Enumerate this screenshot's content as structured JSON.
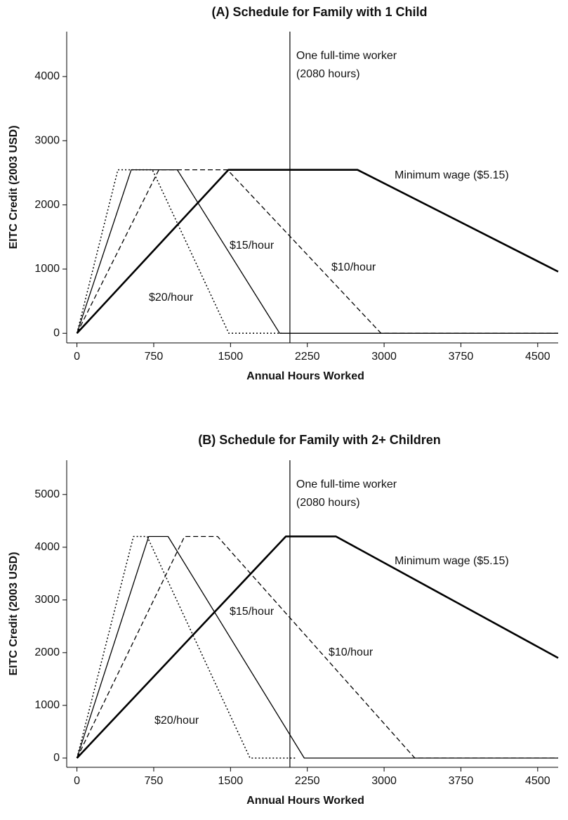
{
  "chart_data": [
    {
      "type": "line",
      "title": "(A) Schedule for Family with 1 Child",
      "xlabel": "Annual Hours Worked",
      "ylabel": "EITC Credit (2003 USD)",
      "xlim": [
        -100,
        4700
      ],
      "ylim": [
        -150,
        4700
      ],
      "xticks": [
        0,
        750,
        1500,
        2250,
        3000,
        3750,
        4500
      ],
      "yticks": [
        0,
        1000,
        2000,
        3000,
        4000
      ],
      "vline": {
        "x": 2080,
        "label": [
          "One full-time worker",
          "(2080 hours)"
        ]
      },
      "series": [
        {
          "name": "Minimum wage ($5.15)",
          "color": "#000000",
          "style": "thick",
          "x": [
            0,
            1480,
            2740,
            4700
          ],
          "values": [
            0,
            2547,
            2547,
            960
          ]
        },
        {
          "name": "$15/hour",
          "color": "#000000",
          "style": "solid",
          "x": [
            0,
            530,
            980,
            1980,
            4700
          ],
          "values": [
            0,
            2547,
            2547,
            0,
            0
          ]
        },
        {
          "name": "$10/hour",
          "color": "#000000",
          "style": "dashed",
          "x": [
            0,
            800,
            1470,
            2970,
            4700
          ],
          "values": [
            0,
            2547,
            2547,
            0,
            0
          ]
        },
        {
          "name": "$20/hour",
          "color": "#000000",
          "style": "dotted",
          "x": [
            0,
            400,
            737,
            1483,
            2000
          ],
          "values": [
            0,
            2547,
            2547,
            0,
            0
          ]
        }
      ]
    },
    {
      "type": "line",
      "title": "(B) Schedule for Family with 2+ Children",
      "xlabel": "Annual Hours Worked",
      "ylabel": "EITC Credit (2003 USD)",
      "xlim": [
        -100,
        4700
      ],
      "ylim": [
        -175,
        5650
      ],
      "xticks": [
        0,
        750,
        1500,
        2250,
        3000,
        3750,
        4500
      ],
      "yticks": [
        0,
        1000,
        2000,
        3000,
        4000,
        5000
      ],
      "vline": {
        "x": 2080,
        "label": [
          "One full-time worker",
          "(2080 hours)"
        ]
      },
      "series": [
        {
          "name": "Minimum wage ($5.15)",
          "color": "#000000",
          "style": "thick",
          "x": [
            0,
            2040,
            2530,
            4700
          ],
          "values": [
            0,
            4204,
            4204,
            1900
          ]
        },
        {
          "name": "$15/hour",
          "color": "#000000",
          "style": "solid",
          "x": [
            0,
            701,
            890,
            2220,
            4700
          ],
          "values": [
            0,
            4204,
            4204,
            0,
            0
          ]
        },
        {
          "name": "$10/hour",
          "color": "#000000",
          "style": "dashed",
          "x": [
            0,
            1051,
            1373,
            3300,
            4700
          ],
          "values": [
            0,
            4204,
            4204,
            0,
            0
          ]
        },
        {
          "name": "$20/hour",
          "color": "#000000",
          "style": "dotted",
          "x": [
            0,
            552,
            686,
            1690,
            2140
          ],
          "values": [
            0,
            4204,
            4204,
            0,
            0
          ]
        }
      ]
    }
  ]
}
